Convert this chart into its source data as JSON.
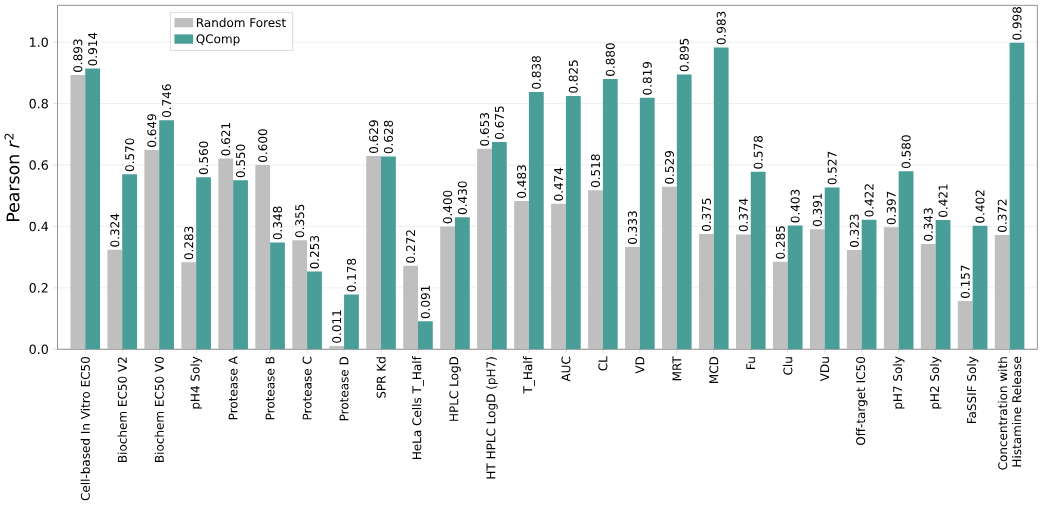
{
  "chart_data": {
    "type": "bar",
    "ylabel": "Pearson *r*$^{2}$",
    "categories": [
      "Cell-based In Vitro EC50",
      "Biochem EC50 V2",
      "Biochem EC50 V0",
      "pH4 Soly",
      "Protease A",
      "Protease B",
      "Protease C",
      "Protease D",
      "SPR Kd",
      "HeLa Cells T_Half",
      "HPLC LogD",
      "HT HPLC LogD (pH7)",
      "T_Half",
      "AUC",
      "CL",
      "VD",
      "MRT",
      "MCD",
      "Fu",
      "Clu",
      "VDu",
      "Off-target IC50",
      "pH7 Soly",
      "pH2 Soly",
      "FaSSIF Soly",
      "Concentration with Histamine Release"
    ],
    "series": [
      {
        "name": "Random Forest",
        "color": "#bfbfbf",
        "values": [
          0.893,
          0.324,
          0.649,
          0.283,
          0.621,
          0.6,
          0.355,
          0.011,
          0.629,
          0.272,
          0.4,
          0.653,
          0.483,
          0.474,
          0.518,
          0.333,
          0.529,
          0.375,
          0.374,
          0.285,
          0.391,
          0.323,
          0.397,
          0.343,
          0.157,
          0.372
        ],
        "value_labels": [
          "0.893",
          "0.324",
          "0.649",
          "0.283",
          "0.621",
          "0.600",
          "0.355",
          "0.011",
          "0.629",
          "0.272",
          "0.400",
          "0.653",
          "0.483",
          "0.474",
          "0.518",
          "0.333",
          "0.529",
          "0.375",
          "0.374",
          "0.285",
          "0.391",
          "0.323",
          "0.397",
          "0.343",
          "0.157",
          "0.372"
        ]
      },
      {
        "name": "QComp",
        "color": "#4a9e98",
        "values": [
          0.914,
          0.57,
          0.746,
          0.56,
          0.55,
          0.348,
          0.253,
          0.178,
          0.628,
          0.091,
          0.43,
          0.675,
          0.838,
          0.825,
          0.88,
          0.819,
          0.895,
          0.983,
          0.578,
          0.403,
          0.527,
          0.422,
          0.58,
          0.421,
          0.402,
          0.998
        ],
        "value_labels": [
          "0.914",
          "0.570",
          "0.746",
          "0.560",
          "0.550",
          "0.348",
          "0.253",
          "0.178",
          "0.628",
          "0.091",
          "0.430",
          "0.675",
          "0.838",
          "0.825",
          "0.880",
          "0.819",
          "0.895",
          "0.983",
          "0.578",
          "0.403",
          "0.527",
          "0.422",
          "0.580",
          "0.421",
          "0.402",
          "0.998"
        ]
      }
    ],
    "ylim": [
      0,
      1.12
    ],
    "yticks": [
      {
        "value": 0,
        "label": "0.0"
      },
      {
        "value": 0.2,
        "label": "0.2"
      },
      {
        "value": 0.4,
        "label": "0.4"
      },
      {
        "value": 0.6,
        "label": "0.6"
      },
      {
        "value": 0.8,
        "label": "0.8"
      },
      {
        "value": 1.0,
        "label": "1.0"
      }
    ],
    "grid": "y",
    "legend": "top left"
  }
}
